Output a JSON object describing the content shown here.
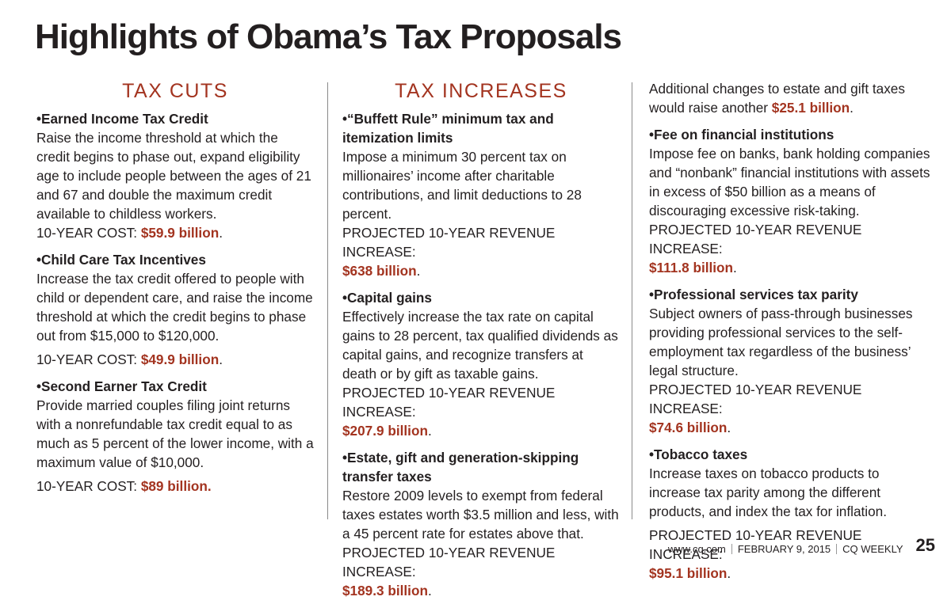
{
  "title": "Highlights of Obama’s Tax Proposals",
  "tax_cuts": {
    "heading": "TAX CUTS",
    "items": [
      {
        "title": "•Earned Income Tax Credit",
        "body": "Raise the income threshold at which the credit begins to phase out, expand eligibility age to include people between the ages of 21 and 67 and double the maximum credit available to childless workers.",
        "cost_label": "10-YEAR COST: ",
        "amount": "$59.9 billion",
        "suffix": "."
      },
      {
        "title": "•Child Care Tax Incentives",
        "body": "Increase the tax credit offered to people with child or dependent care, and raise the income threshold at which the credit begins to phase out from $15,000 to $120,000.",
        "cost_label": "10-YEAR COST: ",
        "amount": "$49.9 billion",
        "suffix": "."
      },
      {
        "title": "•Second Earner Tax Credit",
        "body": "Provide married couples filing joint returns with a nonrefundable tax credit equal to as much as 5 percent of the lower income, with a maximum value of $10,000.",
        "cost_label": "10-YEAR COST: ",
        "amount": "$89 billion.",
        "suffix": ""
      }
    ]
  },
  "tax_increases": {
    "heading": "TAX INCREASES",
    "items": [
      {
        "title": "•“Buffett Rule” minimum tax and itemization limits",
        "body": "Impose a minimum 30 percent tax on millionaires’ income after charitable contributions, and limit deductions to 28 percent.",
        "cost_label": "PROJECTED 10-YEAR REVENUE INCREASE:",
        "amount": "$638 billion",
        "suffix": "."
      },
      {
        "title": "•Capital gains",
        "body": "Effectively increase the tax rate on capital gains to 28 percent, tax qualified dividends as capital gains, and recognize transfers at death or by gift as taxable gains.",
        "cost_label": "PROJECTED 10-YEAR REVENUE INCREASE:",
        "amount": "$207.9 billion",
        "suffix": "."
      },
      {
        "title": "•Estate, gift and generation-skipping transfer taxes",
        "body": "Restore 2009 levels to exempt from federal taxes estates worth $3.5 million and less, with a 45 percent rate for estates above that.",
        "cost_label": "PROJECTED 10-YEAR REVENUE INCREASE:",
        "amount": "$189.3 billion",
        "suffix": "."
      }
    ]
  },
  "column3": {
    "continuation": {
      "text": "Additional changes to estate and gift taxes would raise another ",
      "amount": "$25.1 billion",
      "suffix": "."
    },
    "items": [
      {
        "title": "•Fee on financial institutions",
        "body": "Impose fee on banks, bank holding companies and “nonbank” financial institutions with assets in excess of $50 billion as a means of discouraging excessive risk-taking.",
        "cost_label": "PROJECTED 10-YEAR REVENUE INCREASE:",
        "amount": "$111.8 billion",
        "suffix": "."
      },
      {
        "title": "•Professional services tax parity",
        "body": "Subject owners of pass-through businesses providing professional services to the self-employment tax regardless of the business’ legal structure.",
        "cost_label": "PROJECTED 10-YEAR REVENUE INCREASE:",
        "amount": "$74.6 billion",
        "suffix": "."
      },
      {
        "title": "•Tobacco taxes",
        "body": "Increase taxes on tobacco products to increase tax parity among the different products, and index the tax for inflation.",
        "cost_label": "PROJECTED 10-YEAR REVENUE INCREASE:",
        "amount": "$95.1 billion",
        "suffix": "."
      }
    ]
  },
  "footer": {
    "site": "www.cq.com",
    "date": "FEBRUARY 9, 2015",
    "publication": "CQ WEEKLY",
    "page": "25"
  },
  "colors": {
    "accent": "#a33420",
    "text": "#231f20"
  }
}
